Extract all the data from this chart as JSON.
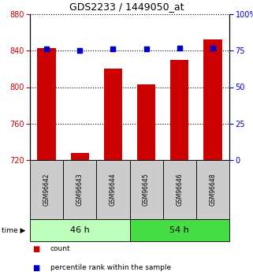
{
  "title": "GDS2233 / 1449050_at",
  "samples": [
    "GSM96642",
    "GSM96643",
    "GSM96644",
    "GSM96645",
    "GSM96646",
    "GSM96648"
  ],
  "count_values": [
    843,
    728,
    820,
    803,
    830,
    852
  ],
  "percentile_values": [
    76,
    75,
    76,
    76,
    77,
    77
  ],
  "ylim_left": [
    720,
    880
  ],
  "ylim_right": [
    0,
    100
  ],
  "yticks_left": [
    720,
    760,
    800,
    840,
    880
  ],
  "yticks_right": [
    0,
    25,
    50,
    75,
    100
  ],
  "ytick_labels_right": [
    "0",
    "25",
    "50",
    "75",
    "100%"
  ],
  "groups": [
    {
      "label": "46 h",
      "indices": [
        0,
        1,
        2
      ],
      "color": "#bbffbb"
    },
    {
      "label": "54 h",
      "indices": [
        3,
        4,
        5
      ],
      "color": "#44dd44"
    }
  ],
  "bar_color": "#cc0000",
  "dot_color": "#0000cc",
  "sample_box_color": "#cccccc",
  "legend_items": [
    "count",
    "percentile rank within the sample"
  ]
}
